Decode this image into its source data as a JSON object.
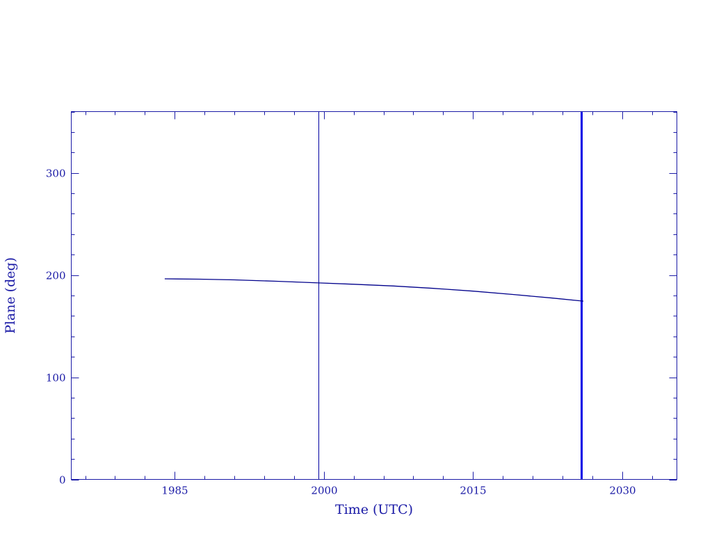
{
  "chart_data": {
    "type": "line",
    "title": "",
    "xlabel": "Time (UTC)",
    "ylabel": "Plane (deg)",
    "xlim": [
      1974.6,
      2035.5
    ],
    "ylim": [
      0,
      360
    ],
    "x_ticks": [
      1985,
      2000,
      2015,
      2030
    ],
    "y_ticks": [
      0,
      100,
      200,
      300
    ],
    "x_minor_step": 3,
    "y_minor_step": 20,
    "grid": false,
    "series": [
      {
        "x": [
          1984.0,
          1987.5,
          1991.0,
          1995.0,
          1999.5,
          2003.0,
          2007.0,
          2011.0,
          2015.0,
          2019.0,
          2023.0,
          2026.1
        ],
        "y": [
          196.3,
          196.0,
          195.3,
          194.0,
          192.3,
          191.0,
          189.3,
          187.0,
          184.3,
          181.0,
          177.5,
          174.5
        ],
        "color": "#00008b"
      }
    ],
    "vertical_markers": [
      {
        "x": 1999.45,
        "color": "#0000a0",
        "style": "thin"
      },
      {
        "x": 2025.9,
        "color": "#0000e6",
        "style": "thick"
      }
    ],
    "colors": {
      "axes": "#1a1aa6",
      "text": "#1a1aa6"
    }
  }
}
